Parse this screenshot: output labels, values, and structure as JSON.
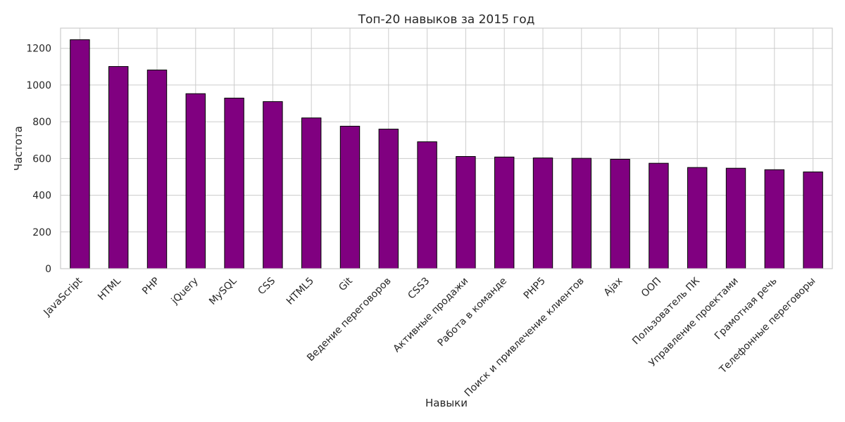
{
  "chart_data": {
    "type": "bar",
    "title": "Топ-20 навыков за 2015 год",
    "xlabel": "Навыки",
    "ylabel": "Частота",
    "ylim": [
      0,
      1310
    ],
    "yticks": [
      0,
      200,
      400,
      600,
      800,
      1000,
      1200
    ],
    "grid": true,
    "bar_color": "#800080",
    "bar_edge_color": "#000000",
    "grid_color": "#cccccc",
    "categories": [
      "JavaScript",
      "HTML",
      "PHP",
      "jQuery",
      "MySQL",
      "CSS",
      "HTML5",
      "Git",
      "Ведение переговоров",
      "CSS3",
      "Активные продажи",
      "Работа в команде",
      "PHP5",
      "Поиск и привлечение клиентов",
      "Ajax",
      "ООП",
      "Пользователь ПК",
      "Управление проектами",
      "Грамотная речь",
      "Телефонные переговоры"
    ],
    "values": [
      1247,
      1101,
      1082,
      953,
      929,
      910,
      821,
      776,
      760,
      691,
      611,
      608,
      603,
      601,
      596,
      574,
      551,
      547,
      539,
      527
    ]
  }
}
